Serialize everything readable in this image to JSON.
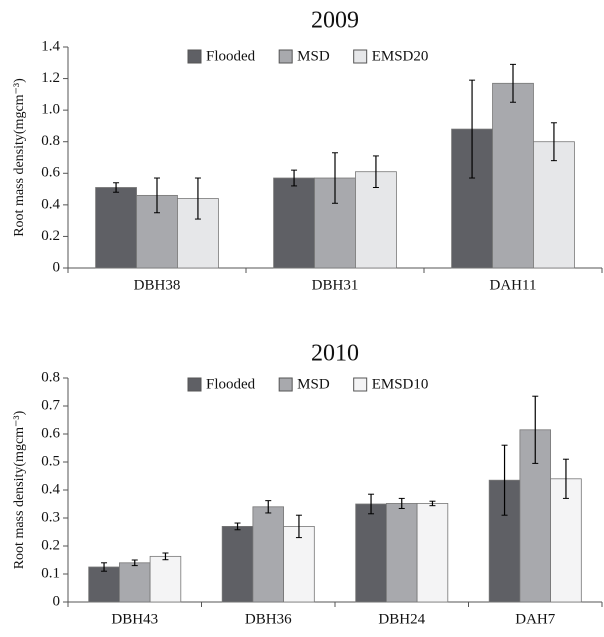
{
  "chart_data": [
    {
      "type": "bar",
      "title": "2009",
      "y_label": "Root mass density(mgcm⁻³)",
      "categories": [
        "DBH38",
        "DBH31",
        "DAH11"
      ],
      "series": [
        {
          "name": "Flooded",
          "color": "#5f6065",
          "values": [
            0.51,
            0.57,
            0.88
          ],
          "errors": [
            0.03,
            0.05,
            0.31
          ]
        },
        {
          "name": "MSD",
          "color": "#a8a9ad",
          "values": [
            0.46,
            0.57,
            1.17
          ],
          "errors": [
            0.11,
            0.16,
            0.12
          ]
        },
        {
          "name": "EMSD20",
          "color": "#e6e7e9",
          "values": [
            0.44,
            0.61,
            0.8
          ],
          "errors": [
            0.13,
            0.1,
            0.12
          ]
        }
      ],
      "ylim": [
        0,
        1.4
      ],
      "yticks": [
        0,
        0.2,
        0.4,
        0.6,
        0.8,
        {
          "value": 1,
          "label": "1.0"
        },
        1.2,
        1.4
      ]
    },
    {
      "type": "bar",
      "title": "2010",
      "y_label": "Root mass density(mgcm⁻³)",
      "categories": [
        "DBH43",
        "DBH36",
        "DBH24",
        "DAH7"
      ],
      "series": [
        {
          "name": "Flooded",
          "color": "#5f6065",
          "values": [
            0.125,
            0.27,
            0.35,
            0.435
          ],
          "errors": [
            0.015,
            0.012,
            0.035,
            0.125
          ]
        },
        {
          "name": "MSD",
          "color": "#a8a9ad",
          "values": [
            0.14,
            0.34,
            0.352,
            0.615
          ],
          "errors": [
            0.01,
            0.022,
            0.018,
            0.12
          ]
        },
        {
          "name": "EMSD10",
          "color": "#f4f4f5",
          "values": [
            0.163,
            0.27,
            0.352,
            0.44
          ],
          "errors": [
            0.012,
            0.04,
            0.008,
            0.07
          ]
        }
      ],
      "ylim": [
        0,
        0.8
      ],
      "yticks": [
        0,
        0.1,
        0.2,
        0.3,
        0.4,
        0.5,
        0.6,
        0.7,
        0.8
      ]
    }
  ]
}
